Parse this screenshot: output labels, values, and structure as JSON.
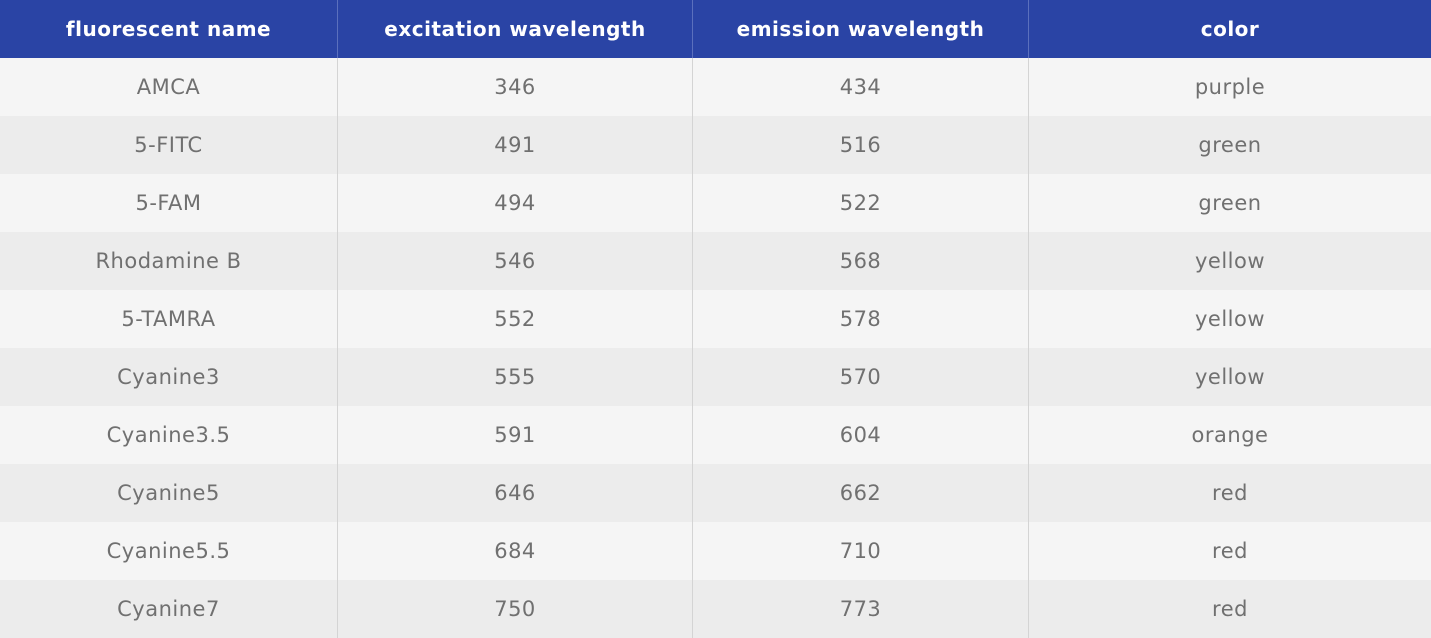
{
  "table": {
    "header": [
      "fluorescent name",
      "excitation wavelength",
      "emission wavelength",
      "color"
    ],
    "rows": [
      [
        "AMCA",
        346,
        434,
        "purple"
      ],
      [
        "5-FITC",
        491,
        516,
        "green"
      ],
      [
        "5-FAM",
        494,
        522,
        "green"
      ],
      [
        "Rhodamine B",
        546,
        568,
        "yellow"
      ],
      [
        "5-TAMRA",
        552,
        578,
        "yellow"
      ],
      [
        "Cyanine3",
        555,
        570,
        "yellow"
      ],
      [
        "Cyanine3.5",
        591,
        604,
        "orange"
      ],
      [
        "Cyanine5",
        646,
        662,
        "red"
      ],
      [
        "Cyanine5.5",
        684,
        710,
        "red"
      ],
      [
        "Cyanine7",
        750,
        773,
        "red"
      ]
    ]
  }
}
